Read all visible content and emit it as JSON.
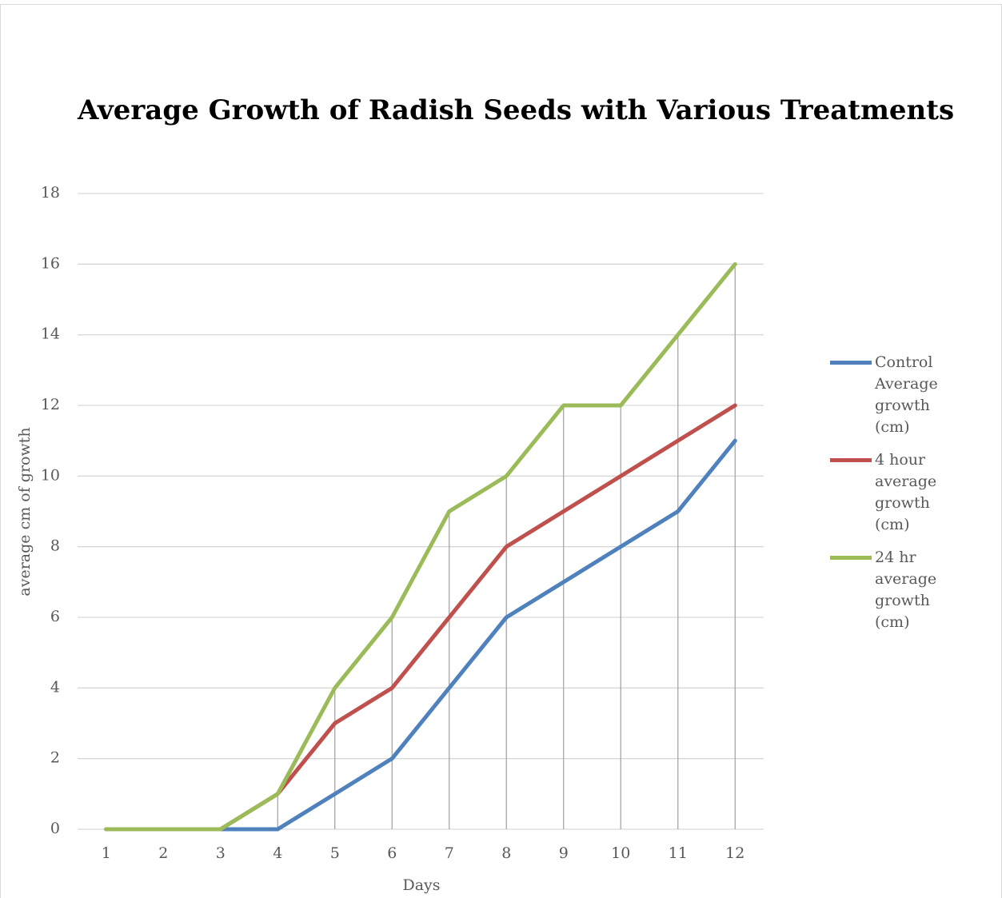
{
  "chart_data": {
    "type": "line",
    "title": "Average Growth of Radish Seeds with Various Treatments",
    "x_label": "Days",
    "y_label": "average cm of growth",
    "categories": [
      "1",
      "2",
      "3",
      "4",
      "5",
      "6",
      "7",
      "8",
      "9",
      "10",
      "11",
      "12"
    ],
    "series": [
      {
        "name": "Control Average growth (cm)",
        "color": "#4f81bd",
        "values": [
          0,
          0,
          0,
          0,
          1,
          2,
          4,
          6,
          7,
          8,
          9,
          11
        ]
      },
      {
        "name": "4 hour average growth (cm)",
        "color": "#c0504d",
        "values": [
          0,
          0,
          0,
          1,
          3,
          4,
          6,
          8,
          9,
          10,
          11,
          12
        ]
      },
      {
        "name": "24 hr average growth (cm)",
        "color": "#9bbb59",
        "values": [
          0,
          0,
          0,
          1,
          4,
          6,
          9,
          10,
          12,
          12,
          14,
          16
        ]
      }
    ],
    "ylim": [
      0,
      18
    ],
    "yticks": [
      0,
      2,
      4,
      6,
      8,
      10,
      12,
      14,
      16,
      18
    ],
    "grid": true,
    "drop_lines": true,
    "legend": "right"
  }
}
